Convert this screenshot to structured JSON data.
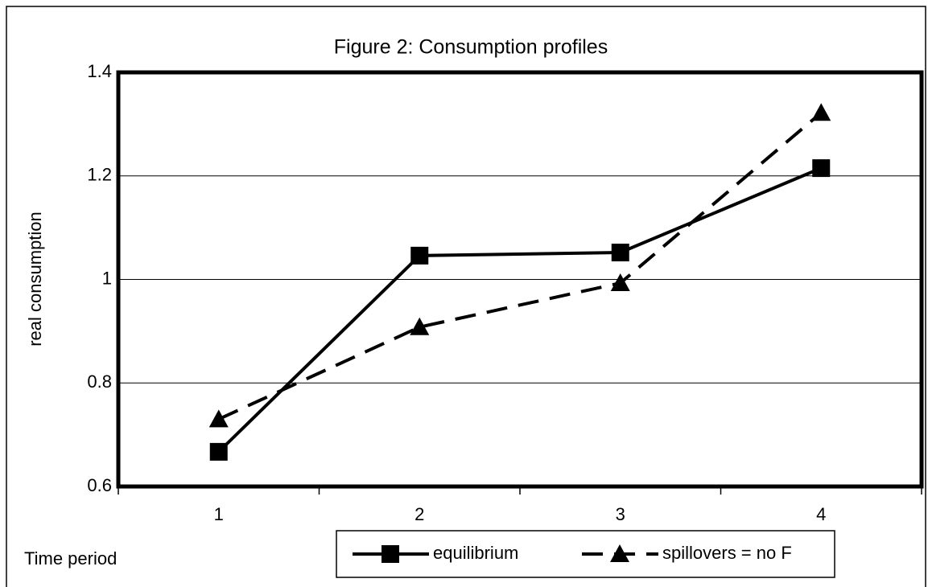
{
  "chart_data": {
    "type": "line",
    "title": "Figure 2:  Consumption profiles",
    "y_label": "real consumption",
    "x_label": "Time period",
    "categories": [
      "1",
      "2",
      "3",
      "4"
    ],
    "series": [
      {
        "name": "equilibrium",
        "color": "#000000",
        "line_style": "solid",
        "marker": "square",
        "values": [
          0.667,
          1.046,
          1.052,
          1.215
        ]
      },
      {
        "name": "spillovers = no F",
        "color": "#000000",
        "line_style": "dashed",
        "marker": "triangle",
        "values": [
          0.73,
          0.908,
          0.993,
          1.322
        ]
      }
    ],
    "ylim": [
      0.6,
      1.4
    ],
    "yticks": [
      0.6,
      0.8,
      1,
      1.2,
      1.4
    ],
    "grid": true,
    "legend": "bottom"
  }
}
